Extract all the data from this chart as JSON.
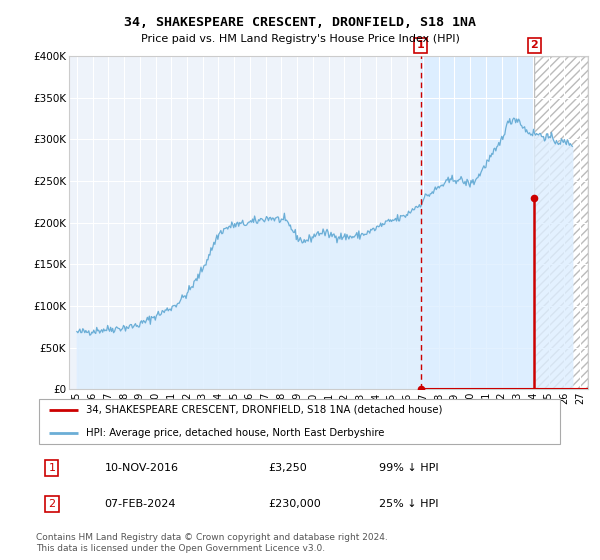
{
  "title": "34, SHAKESPEARE CRESCENT, DRONFIELD, S18 1NA",
  "subtitle": "Price paid vs. HM Land Registry's House Price Index (HPI)",
  "hpi_label": "HPI: Average price, detached house, North East Derbyshire",
  "property_label": "34, SHAKESPEARE CRESCENT, DRONFIELD, S18 1NA (detached house)",
  "transaction1": {
    "date": "10-NOV-2016",
    "price": 3250,
    "hpi_pct": "99% ↓ HPI",
    "label": "1"
  },
  "transaction2": {
    "date": "07-FEB-2024",
    "price": 230000,
    "hpi_pct": "25% ↓ HPI",
    "label": "2"
  },
  "event1_x": 2016.87,
  "event2_x": 2024.08,
  "event1_price": 3250,
  "event2_price": 230000,
  "ylim": [
    0,
    400000
  ],
  "xlim_start": 1994.5,
  "xlim_end": 2027.5,
  "hpi_color": "#6baed6",
  "hpi_fill_color": "#ddeeff",
  "property_color": "#cc0000",
  "grid_color": "#cccccc",
  "background_color": "#eef3fa",
  "footer": "Contains HM Land Registry data © Crown copyright and database right 2024.\nThis data is licensed under the Open Government Licence v3.0.",
  "yticks": [
    0,
    50000,
    100000,
    150000,
    200000,
    250000,
    300000,
    350000,
    400000
  ],
  "ytick_labels": [
    "£0",
    "£50K",
    "£100K",
    "£150K",
    "£200K",
    "£250K",
    "£300K",
    "£350K",
    "£400K"
  ],
  "xtick_labels": [
    "95",
    "96",
    "97",
    "98",
    "99",
    "00",
    "01",
    "02",
    "03",
    "04",
    "05",
    "06",
    "07",
    "08",
    "09",
    "10",
    "11",
    "12",
    "13",
    "14",
    "15",
    "16",
    "17",
    "18",
    "19",
    "20",
    "21",
    "22",
    "23",
    "24",
    "25",
    "26",
    "27"
  ],
  "xticks": [
    1995,
    1996,
    1997,
    1998,
    1999,
    2000,
    2001,
    2002,
    2003,
    2004,
    2005,
    2006,
    2007,
    2008,
    2009,
    2010,
    2011,
    2012,
    2013,
    2014,
    2015,
    2016,
    2017,
    2018,
    2019,
    2020,
    2021,
    2022,
    2023,
    2024,
    2025,
    2026,
    2027
  ],
  "hpi_anchors_x": [
    1995.0,
    1996.0,
    1997.0,
    1998.0,
    1999.0,
    2000.0,
    2001.0,
    2002.0,
    2003.0,
    2003.5,
    2004.0,
    2004.5,
    2005.0,
    2005.5,
    2006.0,
    2006.5,
    2007.0,
    2007.5,
    2008.0,
    2008.5,
    2009.0,
    2009.5,
    2010.0,
    2010.5,
    2011.0,
    2011.5,
    2012.0,
    2012.5,
    2013.0,
    2013.5,
    2014.0,
    2014.5,
    2015.0,
    2015.5,
    2016.0,
    2016.5,
    2016.87,
    2017.0,
    2017.5,
    2018.0,
    2018.5,
    2019.0,
    2019.5,
    2020.0,
    2020.5,
    2021.0,
    2021.5,
    2022.0,
    2022.3,
    2022.6,
    2022.9,
    2023.2,
    2023.5,
    2023.8,
    2024.08,
    2024.5,
    2025.0,
    2025.5,
    2026.0,
    2026.5
  ],
  "hpi_anchors_y": [
    68000,
    70000,
    72000,
    74000,
    78000,
    88000,
    98000,
    115000,
    145000,
    165000,
    185000,
    193000,
    197000,
    198000,
    200000,
    202000,
    205000,
    205000,
    203000,
    197000,
    183000,
    178000,
    183000,
    188000,
    186000,
    184000,
    183000,
    183000,
    185000,
    188000,
    193000,
    198000,
    202000,
    205000,
    210000,
    218000,
    223000,
    227000,
    235000,
    242000,
    248000,
    252000,
    250000,
    247000,
    255000,
    270000,
    283000,
    300000,
    315000,
    322000,
    325000,
    320000,
    312000,
    308000,
    307000,
    305000,
    302000,
    298000,
    296000,
    295000
  ]
}
